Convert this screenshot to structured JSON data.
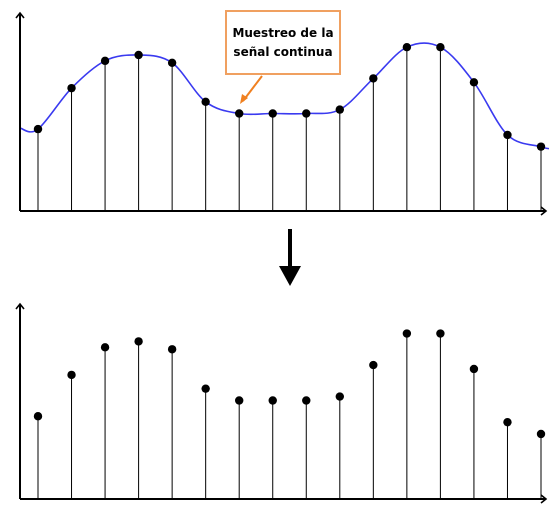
{
  "diagram": {
    "callout": {
      "line1": "Muestreo de la",
      "line2": "señal continua"
    },
    "colors": {
      "signal": "#3a3af0",
      "axis": "#000000",
      "stem": "#000000",
      "sample": "#000000",
      "callout_border": "#f0a060",
      "callout_pointer": "#f08020",
      "arrow": "#000000"
    },
    "arrow_icon": "down-arrow-icon"
  },
  "chart_data": [
    {
      "type": "line",
      "title": "",
      "xlabel": "",
      "ylabel": "",
      "x": [
        0,
        1,
        2,
        3,
        4,
        5,
        6,
        7,
        8,
        9,
        10,
        11,
        12,
        13,
        14,
        15
      ],
      "series": [
        {
          "values": [
            4.2,
            6.3,
            7.7,
            8.0,
            7.6,
            5.6,
            5.0,
            5.0,
            5.0,
            5.2,
            6.8,
            8.4,
            8.4,
            6.6,
            3.9,
            3.3
          ]
        }
      ],
      "continuous_signal": true,
      "samples_shown": true,
      "ylim": [
        0,
        10
      ]
    },
    {
      "type": "scatter",
      "title": "",
      "xlabel": "",
      "ylabel": "",
      "x": [
        0,
        1,
        2,
        3,
        4,
        5,
        6,
        7,
        8,
        9,
        10,
        11,
        12,
        13,
        14,
        15
      ],
      "series": [
        {
          "values": [
            4.2,
            6.3,
            7.7,
            8.0,
            7.6,
            5.6,
            5.0,
            5.0,
            5.0,
            5.2,
            6.8,
            8.4,
            8.4,
            6.6,
            3.9,
            3.3
          ]
        }
      ],
      "stems": true,
      "ylim": [
        0,
        10
      ]
    }
  ]
}
